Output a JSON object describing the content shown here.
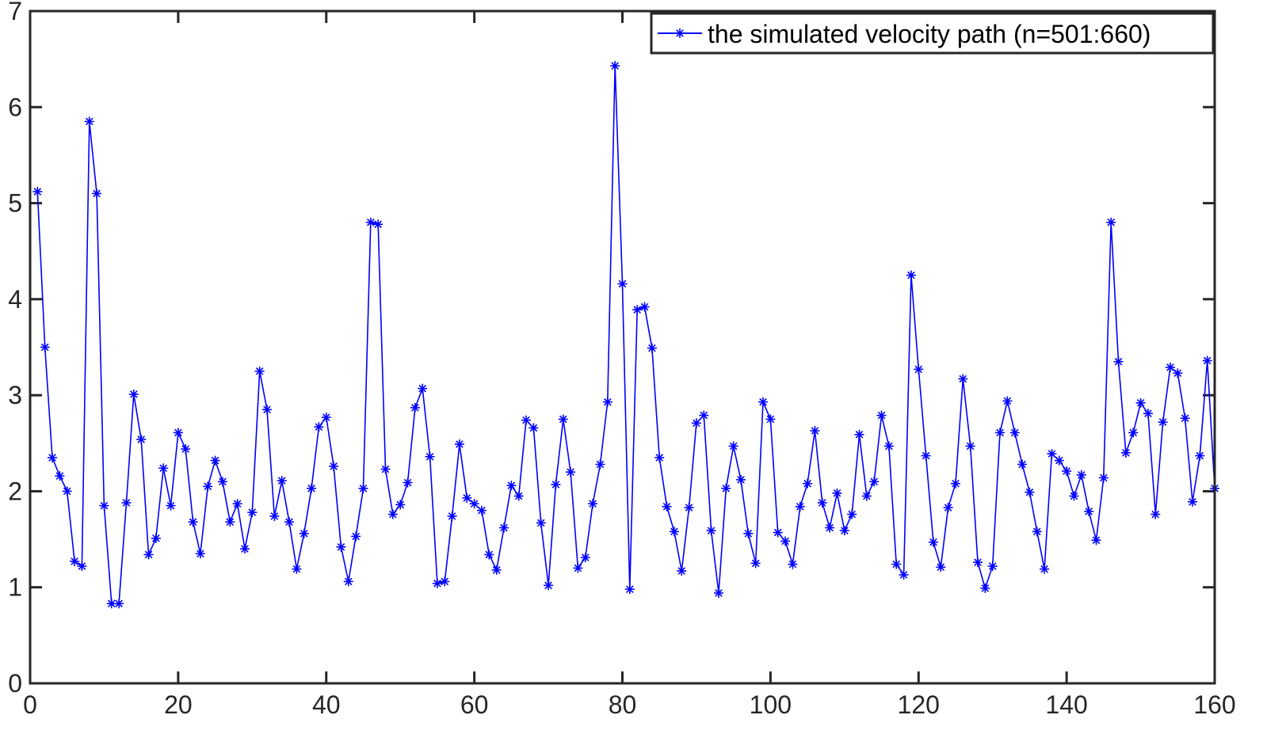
{
  "chart_data": {
    "type": "line",
    "title": "",
    "xlabel": "",
    "ylabel": "",
    "xlim": [
      0,
      160
    ],
    "ylim": [
      0,
      7
    ],
    "xticks": [
      0,
      20,
      40,
      60,
      80,
      100,
      120,
      140,
      160
    ],
    "yticks": [
      0,
      1,
      2,
      3,
      4,
      5,
      6,
      7
    ],
    "grid": false,
    "legend_position": "top-right",
    "marker": "asterisk",
    "line_color": "#0000ff",
    "series": [
      {
        "name": "the simulated velocity path (n=501:660)",
        "x": [
          1,
          2,
          3,
          4,
          5,
          6,
          7,
          8,
          9,
          10,
          11,
          12,
          13,
          14,
          15,
          16,
          17,
          18,
          19,
          20,
          21,
          22,
          23,
          24,
          25,
          26,
          27,
          28,
          29,
          30,
          31,
          32,
          33,
          34,
          35,
          36,
          37,
          38,
          39,
          40,
          41,
          42,
          43,
          44,
          45,
          46,
          47,
          48,
          49,
          50,
          51,
          52,
          53,
          54,
          55,
          56,
          57,
          58,
          59,
          60,
          61,
          62,
          63,
          64,
          65,
          66,
          67,
          68,
          69,
          70,
          71,
          72,
          73,
          74,
          75,
          76,
          77,
          78,
          79,
          80,
          81,
          82,
          83,
          84,
          85,
          86,
          87,
          88,
          89,
          90,
          91,
          92,
          93,
          94,
          95,
          96,
          97,
          98,
          99,
          100,
          101,
          102,
          103,
          104,
          105,
          106,
          107,
          108,
          109,
          110,
          111,
          112,
          113,
          114,
          115,
          116,
          117,
          118,
          119,
          120,
          121,
          122,
          123,
          124,
          125,
          126,
          127,
          128,
          129,
          130,
          131,
          132,
          133,
          134,
          135,
          136,
          137,
          138,
          139,
          140,
          141,
          142,
          143,
          144,
          145,
          146,
          147,
          148,
          149,
          150,
          151,
          152,
          153,
          154,
          155,
          156,
          157,
          158,
          159,
          160
        ],
        "y": [
          5.12,
          3.5,
          2.35,
          2.16,
          2.0,
          1.27,
          1.22,
          5.85,
          5.1,
          1.85,
          0.83,
          0.83,
          1.88,
          3.01,
          2.54,
          1.34,
          1.51,
          2.24,
          1.85,
          2.61,
          2.44,
          1.68,
          1.35,
          2.05,
          2.32,
          2.1,
          1.68,
          1.87,
          1.4,
          1.78,
          3.25,
          2.85,
          1.74,
          2.11,
          1.68,
          1.19,
          1.56,
          2.03,
          2.67,
          2.77,
          2.26,
          1.42,
          1.06,
          1.53,
          2.03,
          4.8,
          4.78,
          2.23,
          1.76,
          1.86,
          2.09,
          2.87,
          3.07,
          2.36,
          1.04,
          1.06,
          1.74,
          2.49,
          1.93,
          1.87,
          1.8,
          1.34,
          1.18,
          1.62,
          2.06,
          1.95,
          2.74,
          2.66,
          1.67,
          1.02,
          2.07,
          2.75,
          2.2,
          1.2,
          1.31,
          1.87,
          2.28,
          2.93,
          6.43,
          4.16,
          0.98,
          3.89,
          3.92,
          3.49,
          2.35,
          1.84,
          1.58,
          1.17,
          1.83,
          2.71,
          2.79,
          1.59,
          0.94,
          2.03,
          2.47,
          2.12,
          1.56,
          1.25,
          2.93,
          2.75,
          1.57,
          1.48,
          1.24,
          1.84,
          2.08,
          2.63,
          1.88,
          1.62,
          1.98,
          1.59,
          1.76,
          2.59,
          1.95,
          2.1,
          2.79,
          2.47,
          1.24,
          1.13,
          4.25,
          3.27,
          2.37,
          1.47,
          1.21,
          1.83,
          2.08,
          3.17,
          2.47,
          1.26,
          0.99,
          1.22,
          2.61,
          2.94,
          2.61,
          2.28,
          1.99,
          1.58,
          1.19,
          2.39,
          2.32,
          2.21,
          1.95,
          2.17,
          1.79,
          1.49,
          2.14,
          4.8,
          3.35,
          2.4,
          2.61,
          2.92,
          2.81,
          1.76,
          2.72,
          3.29,
          3.23,
          2.76,
          1.89,
          2.37,
          3.36,
          2.03
        ]
      }
    ]
  }
}
